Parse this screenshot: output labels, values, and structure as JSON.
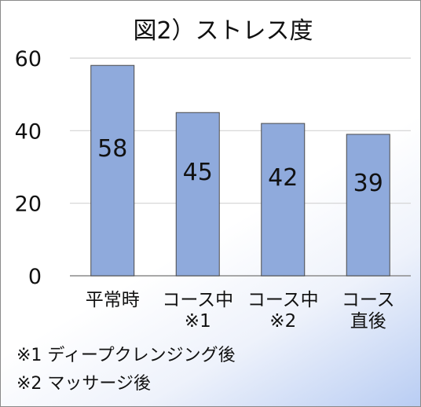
{
  "chart_data": {
    "type": "bar",
    "title": "図2）ストレス度",
    "categories": [
      "平常時",
      "コース中\n※1",
      "コース中\n※2",
      "コース\n直後"
    ],
    "values": [
      58,
      45,
      42,
      39
    ],
    "ylim": [
      0,
      60
    ],
    "yticks": [
      0,
      20,
      40,
      60
    ],
    "grid": true,
    "legend": "none",
    "bar_color": "#8FAADC",
    "bar_edge_color": "#4A4A4A",
    "footnotes": [
      "※1 ディープクレンジング後",
      "※2 マッサージ後"
    ]
  }
}
